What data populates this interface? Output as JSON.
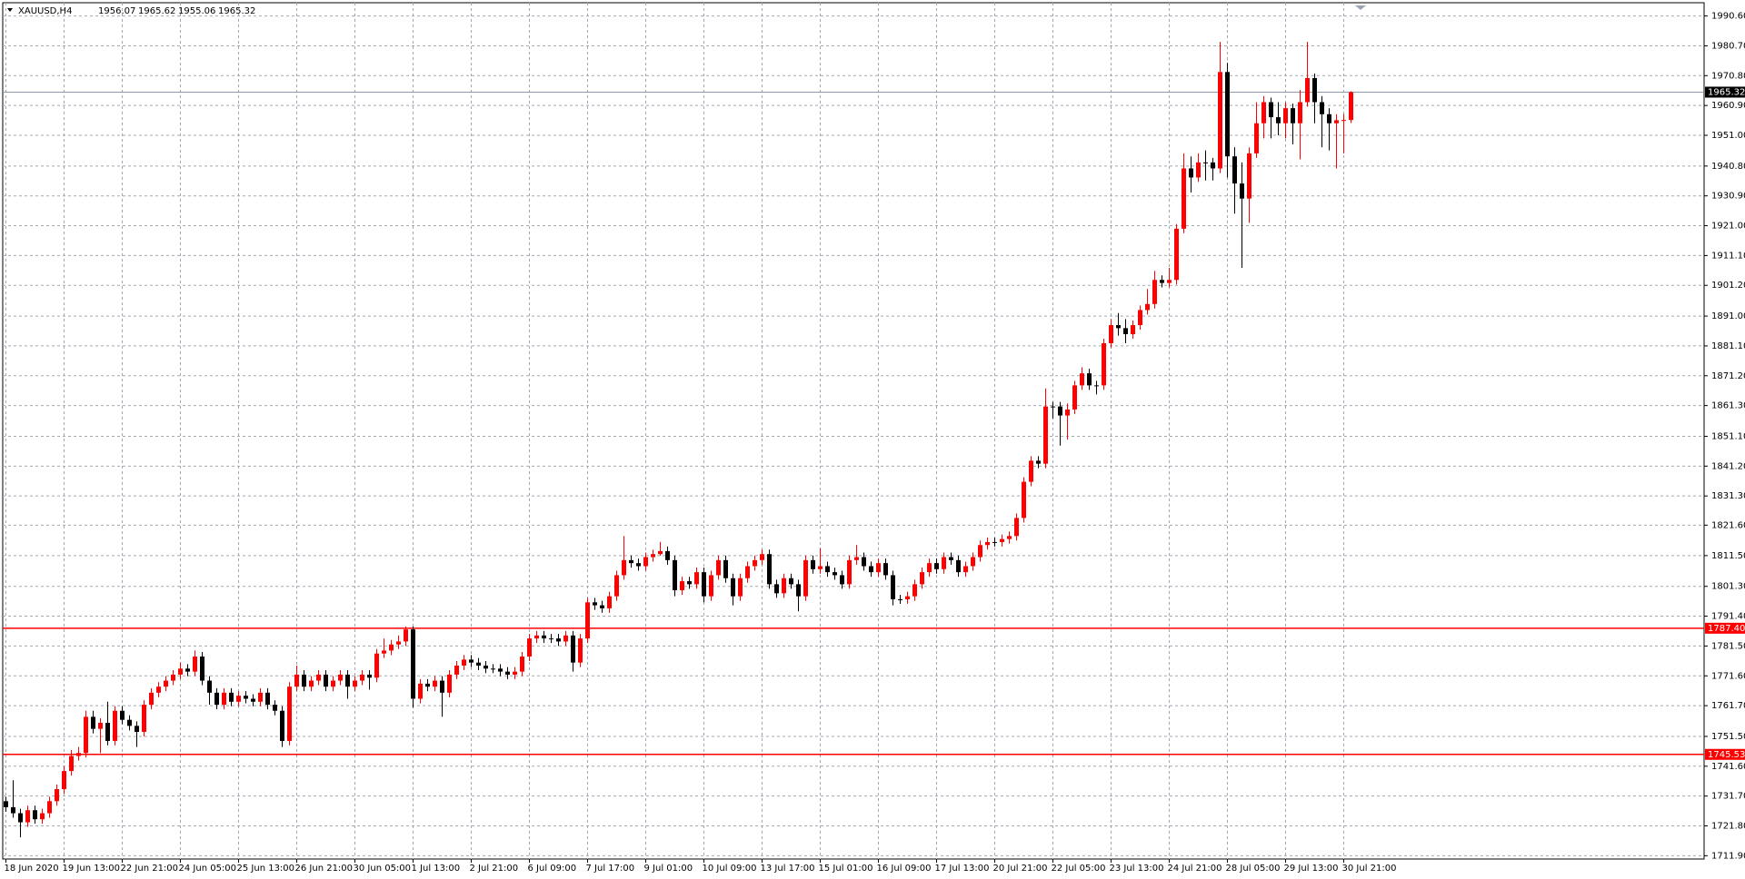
{
  "chart_data": {
    "type": "candlestick",
    "title": "XAUUSD,H4",
    "up_color": "#ff0000",
    "down_color": "#000000",
    "grid": true,
    "ylim": [
      1710.8,
      1995.0
    ],
    "yticks": [
      {
        "value": 1990.6,
        "label": "1990.60"
      },
      {
        "value": 1980.7,
        "label": "1980.70"
      },
      {
        "value": 1970.8,
        "label": "1970.80"
      },
      {
        "value": 1960.9,
        "label": "1960.90"
      },
      {
        "value": 1951.0,
        "label": "1951.00"
      },
      {
        "value": 1940.8,
        "label": "1940.80"
      },
      {
        "value": 1930.9,
        "label": "1930.90"
      },
      {
        "value": 1921.0,
        "label": "1921.00"
      },
      {
        "value": 1911.1,
        "label": "1911.10"
      },
      {
        "value": 1901.2,
        "label": "1901.20"
      },
      {
        "value": 1891.0,
        "label": "1891.00"
      },
      {
        "value": 1881.1,
        "label": "1881.10"
      },
      {
        "value": 1871.2,
        "label": "1871.20"
      },
      {
        "value": 1861.3,
        "label": "1861.30"
      },
      {
        "value": 1851.1,
        "label": "1851.10"
      },
      {
        "value": 1841.2,
        "label": "1841.20"
      },
      {
        "value": 1831.3,
        "label": "1831.30"
      },
      {
        "value": 1821.6,
        "label": "1821.60"
      },
      {
        "value": 1811.5,
        "label": "1811.50"
      },
      {
        "value": 1801.3,
        "label": "1801.30"
      },
      {
        "value": 1791.4,
        "label": "1791.40"
      },
      {
        "value": 1781.5,
        "label": "1781.50"
      },
      {
        "value": 1771.6,
        "label": "1771.60"
      },
      {
        "value": 1761.7,
        "label": "1761.70"
      },
      {
        "value": 1751.5,
        "label": "1751.50"
      },
      {
        "value": 1741.6,
        "label": "1741.60"
      },
      {
        "value": 1731.7,
        "label": "1731.70"
      },
      {
        "value": 1721.8,
        "label": "1721.80"
      },
      {
        "value": 1711.9,
        "label": "1711.90"
      }
    ],
    "xticks": [
      "18 Jun 2020",
      "19 Jun 13:00",
      "22 Jun 21:00",
      "24 Jun 05:00",
      "25 Jun 13:00",
      "26 Jun 21:00",
      "30 Jun 05:00",
      "1 Jul 13:00",
      "2 Jul 21:00",
      "6 Jul 09:00",
      "7 Jul 17:00",
      "9 Jul 01:00",
      "10 Jul 09:00",
      "13 Jul 17:00",
      "15 Jul 01:00",
      "16 Jul 09:00",
      "17 Jul 13:00",
      "20 Jul 21:00",
      "22 Jul 05:00",
      "23 Jul 13:00",
      "24 Jul 21:00",
      "28 Jul 05:00",
      "29 Jul 13:00",
      "30 Jul 21:00"
    ],
    "hlines": [
      {
        "value": 1787.4,
        "label": "1787.40",
        "color": "#ff0000"
      },
      {
        "value": 1745.53,
        "label": "1745.53",
        "color": "#ff0000"
      }
    ],
    "bid_color": "#8c9aa8",
    "candles": [
      [
        1730,
        1731.5,
        1726.5,
        1728
      ],
      [
        1728,
        1737,
        1724.5,
        1726
      ],
      [
        1726,
        1727.5,
        1718,
        1723
      ],
      [
        1723,
        1728.5,
        1721.5,
        1727
      ],
      [
        1727,
        1728.5,
        1722.5,
        1724
      ],
      [
        1724,
        1727.5,
        1722.5,
        1726
      ],
      [
        1726,
        1731.5,
        1724.5,
        1730
      ],
      [
        1730,
        1735.5,
        1728.5,
        1734
      ],
      [
        1734,
        1741.5,
        1732.5,
        1740
      ],
      [
        1740,
        1747,
        1738.5,
        1745
      ],
      [
        1745,
        1748,
        1743.5,
        1746
      ],
      [
        1746,
        1760,
        1744.5,
        1758
      ],
      [
        1758,
        1760,
        1752.5,
        1754
      ],
      [
        1754,
        1757.5,
        1746,
        1756
      ],
      [
        1756,
        1763,
        1748.5,
        1750
      ],
      [
        1750,
        1761.5,
        1748.5,
        1760
      ],
      [
        1760,
        1761.5,
        1755.5,
        1757
      ],
      [
        1757,
        1758.5,
        1753.5,
        1755
      ],
      [
        1755,
        1756.5,
        1748,
        1753
      ],
      [
        1753,
        1763.5,
        1751.5,
        1762
      ],
      [
        1762,
        1767.5,
        1760.5,
        1766
      ],
      [
        1766,
        1769.5,
        1764.5,
        1768
      ],
      [
        1768,
        1771.5,
        1766.5,
        1770
      ],
      [
        1770,
        1773.5,
        1768.5,
        1772
      ],
      [
        1772,
        1776,
        1770.5,
        1774
      ],
      [
        1774,
        1775.5,
        1771.5,
        1773
      ],
      [
        1773,
        1780,
        1771.5,
        1778
      ],
      [
        1778,
        1779.5,
        1768.5,
        1770
      ],
      [
        1770,
        1771.5,
        1762,
        1766
      ],
      [
        1766,
        1767.5,
        1760.5,
        1762
      ],
      [
        1762,
        1767.5,
        1760.5,
        1766
      ],
      [
        1766,
        1767.5,
        1761.5,
        1763
      ],
      [
        1763,
        1766.5,
        1761.5,
        1765
      ],
      [
        1765,
        1766.5,
        1762.5,
        1764
      ],
      [
        1764,
        1765.5,
        1761.5,
        1763
      ],
      [
        1763,
        1767.5,
        1761.5,
        1766
      ],
      [
        1766,
        1767.5,
        1760.5,
        1762
      ],
      [
        1762,
        1763.5,
        1758.5,
        1760
      ],
      [
        1760,
        1761.5,
        1748,
        1750
      ],
      [
        1750,
        1769.5,
        1748.5,
        1768
      ],
      [
        1768,
        1775,
        1766.5,
        1772
      ],
      [
        1772,
        1773.5,
        1766.5,
        1768
      ],
      [
        1768,
        1771.5,
        1766.5,
        1770
      ],
      [
        1770,
        1773.5,
        1768.5,
        1772
      ],
      [
        1772,
        1773.5,
        1766.5,
        1768
      ],
      [
        1768,
        1771.5,
        1766.5,
        1770
      ],
      [
        1770,
        1773.5,
        1768.5,
        1772
      ],
      [
        1772,
        1773.5,
        1764,
        1768
      ],
      [
        1768,
        1771.5,
        1766.5,
        1770
      ],
      [
        1770,
        1773.5,
        1768.5,
        1772
      ],
      [
        1772,
        1773.5,
        1767,
        1771
      ],
      [
        1771,
        1780.5,
        1769.5,
        1779
      ],
      [
        1779,
        1784,
        1777.5,
        1780
      ],
      [
        1780,
        1783.5,
        1778.5,
        1782
      ],
      [
        1782,
        1785,
        1780.5,
        1783
      ],
      [
        1783,
        1788,
        1781.5,
        1787
      ],
      [
        1787,
        1788,
        1761,
        1764
      ],
      [
        1764,
        1770.5,
        1762.5,
        1769
      ],
      [
        1769,
        1770.5,
        1766.5,
        1768
      ],
      [
        1768,
        1771.5,
        1766.5,
        1770
      ],
      [
        1770,
        1771.5,
        1758,
        1766
      ],
      [
        1766,
        1773.5,
        1764.5,
        1772
      ],
      [
        1772,
        1776.5,
        1770.5,
        1775
      ],
      [
        1775,
        1778.5,
        1773.5,
        1777
      ],
      [
        1777,
        1778.5,
        1774.5,
        1776
      ],
      [
        1776,
        1777.5,
        1773.5,
        1775
      ],
      [
        1775,
        1776.5,
        1772.5,
        1774
      ],
      [
        1774,
        1775.5,
        1772.5,
        1774
      ],
      [
        1774,
        1775.5,
        1771.5,
        1773
      ],
      [
        1773,
        1774.5,
        1770.5,
        1772
      ],
      [
        1772,
        1774.5,
        1770.5,
        1773
      ],
      [
        1773,
        1779.5,
        1771.5,
        1778
      ],
      [
        1778,
        1785.5,
        1776.5,
        1784
      ],
      [
        1784,
        1786.5,
        1782.5,
        1785
      ],
      [
        1785,
        1786.5,
        1782.5,
        1784
      ],
      [
        1784,
        1785.5,
        1782.5,
        1784
      ],
      [
        1784,
        1785.5,
        1781.5,
        1783
      ],
      [
        1783,
        1786.5,
        1781.5,
        1785
      ],
      [
        1785,
        1786.5,
        1773,
        1776
      ],
      [
        1776,
        1785.5,
        1774.5,
        1784
      ],
      [
        1784,
        1797.5,
        1782.5,
        1796
      ],
      [
        1796,
        1797.5,
        1793.5,
        1795
      ],
      [
        1795,
        1796.5,
        1792.5,
        1794
      ],
      [
        1794,
        1799.5,
        1792.5,
        1798
      ],
      [
        1798,
        1806.5,
        1796.5,
        1805
      ],
      [
        1805,
        1818,
        1803.5,
        1810
      ],
      [
        1810,
        1811.5,
        1807.5,
        1809
      ],
      [
        1809,
        1810.5,
        1806.5,
        1808
      ],
      [
        1808,
        1812.5,
        1806.5,
        1811
      ],
      [
        1811,
        1813.5,
        1809.5,
        1812
      ],
      [
        1812,
        1816,
        1811.5,
        1813
      ],
      [
        1813,
        1814.5,
        1808.5,
        1810
      ],
      [
        1810,
        1811.5,
        1798,
        1800
      ],
      [
        1800,
        1804.5,
        1798.5,
        1803
      ],
      [
        1803,
        1804.5,
        1800.5,
        1802
      ],
      [
        1802,
        1807.5,
        1800.5,
        1806
      ],
      [
        1806,
        1807.5,
        1796,
        1798
      ],
      [
        1798,
        1806.5,
        1796.5,
        1805
      ],
      [
        1805,
        1811.5,
        1803.5,
        1810
      ],
      [
        1810,
        1811.5,
        1802.5,
        1804
      ],
      [
        1804,
        1805.5,
        1795,
        1798
      ],
      [
        1798,
        1805.5,
        1796.5,
        1804
      ],
      [
        1804,
        1809.5,
        1802.5,
        1808
      ],
      [
        1808,
        1811.5,
        1806.5,
        1810
      ],
      [
        1810,
        1813.5,
        1808.5,
        1812
      ],
      [
        1812,
        1813.5,
        1800.5,
        1802
      ],
      [
        1802,
        1803.5,
        1797.5,
        1799
      ],
      [
        1799,
        1805.5,
        1797.5,
        1804
      ],
      [
        1804,
        1805.5,
        1800.5,
        1802
      ],
      [
        1802,
        1803.5,
        1793,
        1798
      ],
      [
        1798,
        1811.5,
        1796.5,
        1810
      ],
      [
        1810,
        1811.5,
        1805.5,
        1807
      ],
      [
        1807,
        1814,
        1805.5,
        1808
      ],
      [
        1808,
        1809.5,
        1804.5,
        1806
      ],
      [
        1806,
        1807.5,
        1803.5,
        1805
      ],
      [
        1805,
        1806.5,
        1800.5,
        1802
      ],
      [
        1802,
        1811.5,
        1800.5,
        1810
      ],
      [
        1810,
        1815,
        1808.5,
        1811
      ],
      [
        1811,
        1812.5,
        1806.5,
        1808
      ],
      [
        1808,
        1809.5,
        1804.5,
        1806
      ],
      [
        1806,
        1810.5,
        1804.5,
        1809
      ],
      [
        1809,
        1810.5,
        1803.5,
        1805
      ],
      [
        1805,
        1806.5,
        1795,
        1797
      ],
      [
        1797,
        1798.5,
        1795.5,
        1797
      ],
      [
        1797,
        1799.5,
        1795.5,
        1798
      ],
      [
        1798,
        1803.5,
        1796.5,
        1802
      ],
      [
        1802,
        1807.5,
        1800.5,
        1806
      ],
      [
        1806,
        1810.5,
        1804.5,
        1809
      ],
      [
        1809,
        1810.5,
        1805.5,
        1807
      ],
      [
        1807,
        1812.5,
        1805.5,
        1811
      ],
      [
        1811,
        1812.5,
        1808.5,
        1810
      ],
      [
        1810,
        1811.5,
        1804.5,
        1806
      ],
      [
        1806,
        1809.5,
        1804.5,
        1808
      ],
      [
        1808,
        1812.5,
        1806.5,
        1811
      ],
      [
        1811,
        1816.5,
        1809.5,
        1815
      ],
      [
        1815,
        1817.5,
        1813.5,
        1816
      ],
      [
        1816,
        1817.5,
        1814.5,
        1816
      ],
      [
        1816,
        1818.5,
        1814.5,
        1817
      ],
      [
        1817,
        1819.5,
        1815.5,
        1818
      ],
      [
        1818,
        1825.5,
        1816.5,
        1824
      ],
      [
        1824,
        1837.5,
        1822.5,
        1836
      ],
      [
        1836,
        1844.5,
        1834.5,
        1843
      ],
      [
        1843,
        1844.5,
        1840.5,
        1842
      ],
      [
        1842,
        1867,
        1840.5,
        1861
      ],
      [
        1861,
        1862.5,
        1857,
        1861
      ],
      [
        1861,
        1862.5,
        1848,
        1858
      ],
      [
        1858,
        1862,
        1850,
        1860
      ],
      [
        1860,
        1869.5,
        1858.5,
        1868
      ],
      [
        1868,
        1874,
        1866.5,
        1872
      ],
      [
        1872,
        1873.5,
        1866.5,
        1868
      ],
      [
        1868,
        1869.5,
        1865,
        1868
      ],
      [
        1868,
        1883.5,
        1866.5,
        1882
      ],
      [
        1882,
        1890,
        1880.5,
        1888
      ],
      [
        1888,
        1892,
        1884.5,
        1887
      ],
      [
        1887,
        1890,
        1882,
        1885
      ],
      [
        1885,
        1889.5,
        1883.5,
        1888
      ],
      [
        1888,
        1894.5,
        1886.5,
        1893
      ],
      [
        1893,
        1900,
        1891.5,
        1895
      ],
      [
        1895,
        1906,
        1893.5,
        1903
      ],
      [
        1903,
        1904.5,
        1900.5,
        1902
      ],
      [
        1902,
        1907,
        1900.5,
        1903
      ],
      [
        1903,
        1921.5,
        1901.5,
        1920
      ],
      [
        1920,
        1945,
        1918.5,
        1940
      ],
      [
        1940,
        1944,
        1932,
        1937
      ],
      [
        1937,
        1945,
        1935.5,
        1942
      ],
      [
        1942,
        1946,
        1936,
        1942
      ],
      [
        1942,
        1943.5,
        1936,
        1940
      ],
      [
        1940,
        1982,
        1938.5,
        1972
      ],
      [
        1972,
        1975,
        1937,
        1944
      ],
      [
        1944,
        1947,
        1925,
        1935
      ],
      [
        1935,
        1942,
        1907,
        1930
      ],
      [
        1930,
        1947,
        1922,
        1945
      ],
      [
        1945,
        1962,
        1943.5,
        1955
      ],
      [
        1955,
        1964,
        1950,
        1962
      ],
      [
        1962,
        1963.5,
        1950,
        1957
      ],
      [
        1957,
        1962,
        1951,
        1955
      ],
      [
        1955,
        1962,
        1950,
        1960
      ],
      [
        1960,
        1961.5,
        1948,
        1955
      ],
      [
        1955,
        1966,
        1943,
        1962
      ],
      [
        1962,
        1982,
        1960.5,
        1970
      ],
      [
        1970,
        1971.5,
        1955,
        1962
      ],
      [
        1962,
        1964,
        1947,
        1958
      ],
      [
        1958,
        1960,
        1946,
        1955
      ],
      [
        1955,
        1958,
        1940,
        1956
      ],
      [
        1956,
        1958,
        1945,
        1956.07
      ],
      [
        1956.07,
        1965.62,
        1955.06,
        1965.32
      ]
    ]
  }
}
